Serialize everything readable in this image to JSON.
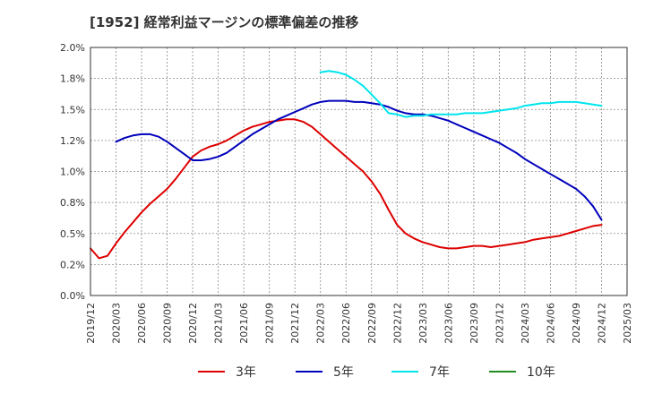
{
  "title": "[1952]  経常利益マージンの標準偏差の推移",
  "chart_data": {
    "type": "line",
    "title": "[1952]  経常利益マージンの標準偏差の推移",
    "xlabel": "",
    "ylabel": "",
    "ylim": [
      0.0,
      2.0
    ],
    "y_ticks": [
      "0.0%",
      "0.2%",
      "0.5%",
      "0.8%",
      "1.0%",
      "1.2%",
      "1.5%",
      "1.8%",
      "2.0%"
    ],
    "x_ticks": [
      "2019/12",
      "2020/03",
      "2020/06",
      "2020/09",
      "2020/12",
      "2021/03",
      "2021/06",
      "2021/09",
      "2021/12",
      "2022/03",
      "2022/06",
      "2022/09",
      "2022/12",
      "2023/03",
      "2023/06",
      "2023/09",
      "2023/12",
      "2024/03",
      "2024/06",
      "2024/09",
      "2024/12",
      "2025/03"
    ],
    "grid": true,
    "legend_position": "bottom",
    "series": [
      {
        "name": "3年",
        "color": "#dd0000",
        "points": [
          [
            "2019/12",
            0.38
          ],
          [
            "2020/01",
            0.3
          ],
          [
            "2020/02",
            0.32
          ],
          [
            "2020/03",
            0.42
          ],
          [
            "2020/04",
            0.51
          ],
          [
            "2020/05",
            0.59
          ],
          [
            "2020/06",
            0.67
          ],
          [
            "2020/07",
            0.74
          ],
          [
            "2020/08",
            0.8
          ],
          [
            "2020/09",
            0.86
          ],
          [
            "2020/10",
            0.94
          ],
          [
            "2020/11",
            1.03
          ],
          [
            "2020/12",
            1.12
          ],
          [
            "2021/01",
            1.17
          ],
          [
            "2021/02",
            1.2
          ],
          [
            "2021/03",
            1.22
          ],
          [
            "2021/04",
            1.25
          ],
          [
            "2021/05",
            1.29
          ],
          [
            "2021/06",
            1.33
          ],
          [
            "2021/07",
            1.36
          ],
          [
            "2021/08",
            1.38
          ],
          [
            "2021/09",
            1.4
          ],
          [
            "2021/10",
            1.41
          ],
          [
            "2021/11",
            1.42
          ],
          [
            "2021/12",
            1.42
          ],
          [
            "2022/01",
            1.4
          ],
          [
            "2022/02",
            1.36
          ],
          [
            "2022/03",
            1.3
          ],
          [
            "2022/04",
            1.24
          ],
          [
            "2022/05",
            1.18
          ],
          [
            "2022/06",
            1.12
          ],
          [
            "2022/07",
            1.06
          ],
          [
            "2022/08",
            1.0
          ],
          [
            "2022/09",
            0.92
          ],
          [
            "2022/10",
            0.82
          ],
          [
            "2022/11",
            0.69
          ],
          [
            "2022/12",
            0.57
          ],
          [
            "2023/01",
            0.5
          ],
          [
            "2023/02",
            0.46
          ],
          [
            "2023/03",
            0.43
          ],
          [
            "2023/04",
            0.41
          ],
          [
            "2023/05",
            0.39
          ],
          [
            "2023/06",
            0.38
          ],
          [
            "2023/07",
            0.38
          ],
          [
            "2023/08",
            0.39
          ],
          [
            "2023/09",
            0.4
          ],
          [
            "2023/10",
            0.4
          ],
          [
            "2023/11",
            0.39
          ],
          [
            "2023/12",
            0.4
          ],
          [
            "2024/01",
            0.41
          ],
          [
            "2024/02",
            0.42
          ],
          [
            "2024/03",
            0.43
          ],
          [
            "2024/04",
            0.45
          ],
          [
            "2024/05",
            0.46
          ],
          [
            "2024/06",
            0.47
          ],
          [
            "2024/07",
            0.48
          ],
          [
            "2024/08",
            0.5
          ],
          [
            "2024/09",
            0.52
          ],
          [
            "2024/10",
            0.54
          ],
          [
            "2024/11",
            0.56
          ],
          [
            "2024/12",
            0.57
          ]
        ]
      },
      {
        "name": "5年",
        "color": "#0000bb",
        "points": [
          [
            "2020/03",
            1.24
          ],
          [
            "2020/04",
            1.27
          ],
          [
            "2020/05",
            1.29
          ],
          [
            "2020/06",
            1.3
          ],
          [
            "2020/07",
            1.3
          ],
          [
            "2020/08",
            1.28
          ],
          [
            "2020/09",
            1.24
          ],
          [
            "2020/10",
            1.19
          ],
          [
            "2020/11",
            1.14
          ],
          [
            "2020/12",
            1.09
          ],
          [
            "2021/01",
            1.09
          ],
          [
            "2021/02",
            1.1
          ],
          [
            "2021/03",
            1.12
          ],
          [
            "2021/04",
            1.15
          ],
          [
            "2021/05",
            1.2
          ],
          [
            "2021/06",
            1.25
          ],
          [
            "2021/07",
            1.3
          ],
          [
            "2021/08",
            1.34
          ],
          [
            "2021/09",
            1.38
          ],
          [
            "2021/10",
            1.42
          ],
          [
            "2021/11",
            1.45
          ],
          [
            "2021/12",
            1.48
          ],
          [
            "2022/01",
            1.51
          ],
          [
            "2022/02",
            1.54
          ],
          [
            "2022/03",
            1.56
          ],
          [
            "2022/04",
            1.57
          ],
          [
            "2022/05",
            1.57
          ],
          [
            "2022/06",
            1.57
          ],
          [
            "2022/07",
            1.56
          ],
          [
            "2022/08",
            1.56
          ],
          [
            "2022/09",
            1.55
          ],
          [
            "2022/10",
            1.54
          ],
          [
            "2022/11",
            1.52
          ],
          [
            "2022/12",
            1.49
          ],
          [
            "2023/01",
            1.47
          ],
          [
            "2023/02",
            1.46
          ],
          [
            "2023/03",
            1.46
          ],
          [
            "2023/04",
            1.45
          ],
          [
            "2023/05",
            1.43
          ],
          [
            "2023/06",
            1.41
          ],
          [
            "2023/07",
            1.38
          ],
          [
            "2023/08",
            1.35
          ],
          [
            "2023/09",
            1.32
          ],
          [
            "2023/10",
            1.29
          ],
          [
            "2023/11",
            1.26
          ],
          [
            "2023/12",
            1.23
          ],
          [
            "2024/01",
            1.19
          ],
          [
            "2024/02",
            1.15
          ],
          [
            "2024/03",
            1.1
          ],
          [
            "2024/04",
            1.06
          ],
          [
            "2024/05",
            1.02
          ],
          [
            "2024/06",
            0.98
          ],
          [
            "2024/07",
            0.94
          ],
          [
            "2024/08",
            0.9
          ],
          [
            "2024/09",
            0.86
          ],
          [
            "2024/10",
            0.8
          ],
          [
            "2024/11",
            0.72
          ],
          [
            "2024/12",
            0.61
          ]
        ]
      },
      {
        "name": "7年",
        "color": "#00e5ee",
        "points": [
          [
            "2022/03",
            1.8
          ],
          [
            "2022/04",
            1.81
          ],
          [
            "2022/05",
            1.8
          ],
          [
            "2022/06",
            1.78
          ],
          [
            "2022/07",
            1.74
          ],
          [
            "2022/08",
            1.69
          ],
          [
            "2022/09",
            1.62
          ],
          [
            "2022/10",
            1.55
          ],
          [
            "2022/11",
            1.47
          ],
          [
            "2022/12",
            1.46
          ],
          [
            "2023/01",
            1.44
          ],
          [
            "2023/02",
            1.45
          ],
          [
            "2023/03",
            1.45
          ],
          [
            "2023/04",
            1.46
          ],
          [
            "2023/05",
            1.46
          ],
          [
            "2023/06",
            1.46
          ],
          [
            "2023/07",
            1.46
          ],
          [
            "2023/08",
            1.47
          ],
          [
            "2023/09",
            1.47
          ],
          [
            "2023/10",
            1.47
          ],
          [
            "2023/11",
            1.48
          ],
          [
            "2023/12",
            1.49
          ],
          [
            "2024/01",
            1.5
          ],
          [
            "2024/02",
            1.51
          ],
          [
            "2024/03",
            1.53
          ],
          [
            "2024/04",
            1.54
          ],
          [
            "2024/05",
            1.55
          ],
          [
            "2024/06",
            1.55
          ],
          [
            "2024/07",
            1.56
          ],
          [
            "2024/08",
            1.56
          ],
          [
            "2024/09",
            1.56
          ],
          [
            "2024/10",
            1.55
          ],
          [
            "2024/11",
            1.54
          ],
          [
            "2024/12",
            1.53
          ]
        ]
      },
      {
        "name": "10年",
        "color": "#228b22",
        "points": []
      }
    ]
  }
}
